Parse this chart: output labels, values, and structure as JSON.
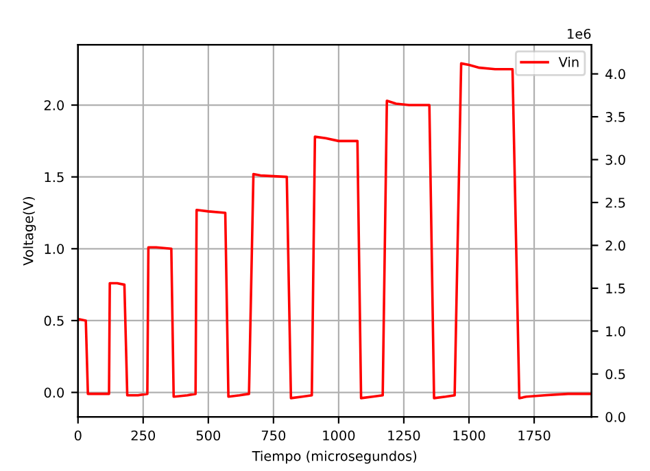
{
  "chart_data": {
    "type": "line",
    "xlabel": "Tiempo (microsegundos)",
    "ylabel": "Voltage(V)",
    "xlim": [
      0,
      1970
    ],
    "xticks": [
      0,
      250,
      500,
      750,
      1000,
      1250,
      1500,
      1750
    ],
    "ylim": [
      -0.17,
      2.42
    ],
    "yticks": [
      {
        "value": 0,
        "label": "0.0"
      },
      {
        "value": 0.5,
        "label": "0.5"
      },
      {
        "value": 1,
        "label": "1.0"
      },
      {
        "value": 1.5,
        "label": "1.5"
      },
      {
        "value": 2,
        "label": "2.0"
      }
    ],
    "y2lim": [
      0,
      4.34
    ],
    "y2ticks": [
      {
        "value": 0,
        "label": "0.0"
      },
      0.5,
      {
        "value": 1,
        "label": "1.0"
      },
      1.5,
      {
        "value": 2,
        "label": "2.0"
      },
      2.5,
      {
        "value": 3,
        "label": "3.0"
      },
      3.5,
      {
        "value": 4,
        "label": "4.0"
      }
    ],
    "annotations": [
      "1e6"
    ],
    "grid": true,
    "legend": "top right",
    "line_style": "solid",
    "marker": "none",
    "series": [
      {
        "name": "Vin",
        "color": "#ff0000",
        "x": [
          0,
          2,
          30,
          38,
          80,
          119,
          122,
          150,
          178,
          189,
          230,
          266,
          270,
          300,
          358,
          367,
          420,
          451,
          455,
          500,
          565,
          577,
          620,
          656,
          673,
          700,
          801,
          817,
          860,
          897,
          909,
          950,
          1000,
          1072,
          1086,
          1130,
          1169,
          1185,
          1220,
          1270,
          1348,
          1366,
          1410,
          1445,
          1470,
          1500,
          1540,
          1600,
          1667,
          1693,
          1720,
          1790,
          1880,
          1970
        ],
        "values": [
          0.5,
          0.51,
          0.5,
          -0.01,
          -0.01,
          -0.01,
          0.76,
          0.76,
          0.75,
          -0.02,
          -0.02,
          -0.01,
          1.01,
          1.01,
          1.0,
          -0.03,
          -0.02,
          -0.01,
          1.27,
          1.26,
          1.25,
          -0.03,
          -0.02,
          -0.01,
          1.52,
          1.51,
          1.5,
          -0.04,
          -0.03,
          -0.02,
          1.78,
          1.77,
          1.75,
          1.75,
          -0.04,
          -0.03,
          -0.02,
          2.03,
          2.01,
          2.0,
          2.0,
          -0.04,
          -0.03,
          -0.02,
          2.29,
          2.28,
          2.26,
          2.25,
          2.25,
          -0.04,
          -0.03,
          -0.02,
          -0.01,
          -0.01
        ]
      }
    ]
  }
}
